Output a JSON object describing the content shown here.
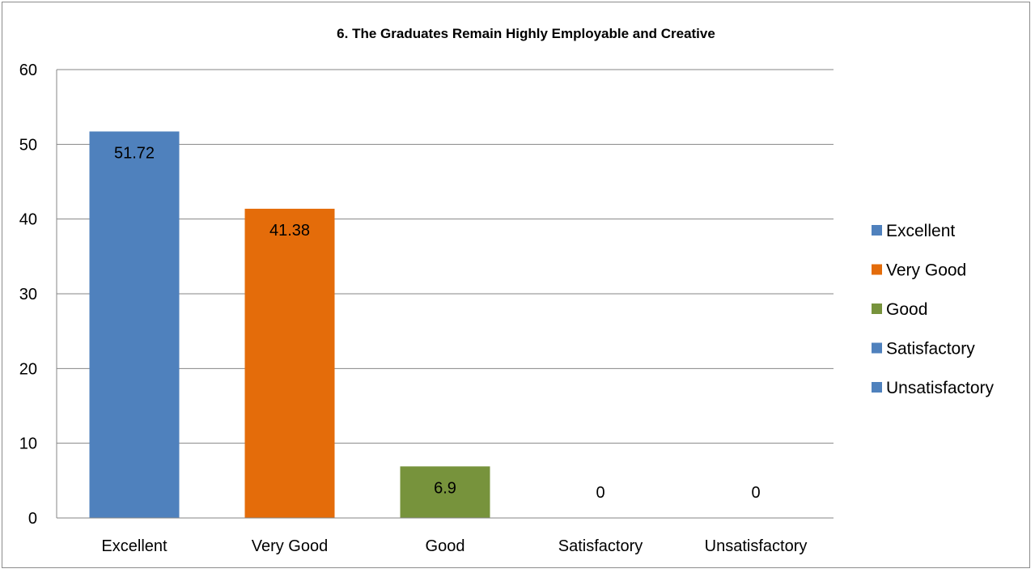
{
  "chart_data": {
    "type": "bar",
    "title": "6. The Graduates Remain Highly Employable and Creative",
    "xlabel": "",
    "ylabel": "",
    "categories": [
      "Excellent",
      "Very Good",
      "Good",
      "Satisfactory",
      "Unsatisfactory"
    ],
    "values": [
      51.72,
      41.38,
      6.9,
      0,
      0
    ],
    "data_labels": [
      "51.72",
      "41.38",
      "6.9",
      "0",
      "0"
    ],
    "colors": [
      "#4f81bd",
      "#e46c0a",
      "#77933c",
      "#4f81bd",
      "#4f81bd"
    ],
    "ylim": [
      0,
      60
    ],
    "yticks": [
      0,
      10,
      20,
      30,
      40,
      50,
      60
    ],
    "ytick_labels": [
      "0",
      "10",
      "20",
      "30",
      "40",
      "50",
      "60"
    ],
    "grid": true,
    "legend": {
      "position": "right",
      "entries": [
        {
          "label": "Excellent",
          "color": "#4f81bd"
        },
        {
          "label": "Very Good",
          "color": "#e46c0a"
        },
        {
          "label": "Good",
          "color": "#77933c"
        },
        {
          "label": "Satisfactory",
          "color": "#4f81bd"
        },
        {
          "label": "Unsatisfactory",
          "color": "#4f81bd"
        }
      ]
    }
  }
}
